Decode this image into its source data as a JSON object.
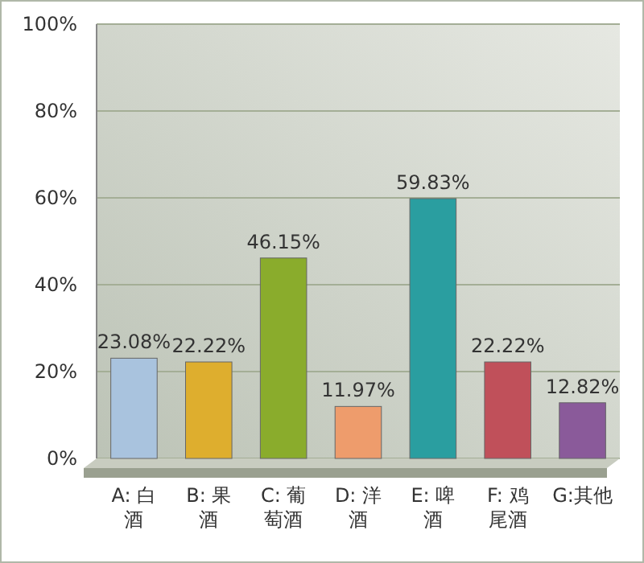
{
  "chart_data": {
    "type": "bar",
    "categories": [
      "A: 白酒",
      "B: 果酒",
      "C: 葡萄酒",
      "D: 洋酒",
      "E: 啤酒",
      "F: 鸡尾酒",
      "G:其他"
    ],
    "values": [
      23.08,
      22.22,
      46.15,
      11.97,
      59.83,
      22.22,
      12.82
    ],
    "value_labels": [
      "23.08%",
      "22.22%",
      "46.15%",
      "11.97%",
      "59.83%",
      "22.22%",
      "12.82%"
    ],
    "colors": [
      "#a9c3de",
      "#deae2e",
      "#8aac2c",
      "#ee9c6c",
      "#2a9ea0",
      "#c0505a",
      "#8a5a9a"
    ],
    "ylim": [
      0,
      100
    ],
    "yticks": [
      {
        "value": 0,
        "label": "0%"
      },
      {
        "value": 20,
        "label": "20%"
      },
      {
        "value": 40,
        "label": "40%"
      },
      {
        "value": 60,
        "label": "60%"
      },
      {
        "value": 80,
        "label": "80%"
      },
      {
        "value": 100,
        "label": "100%"
      }
    ],
    "grid": "y"
  }
}
